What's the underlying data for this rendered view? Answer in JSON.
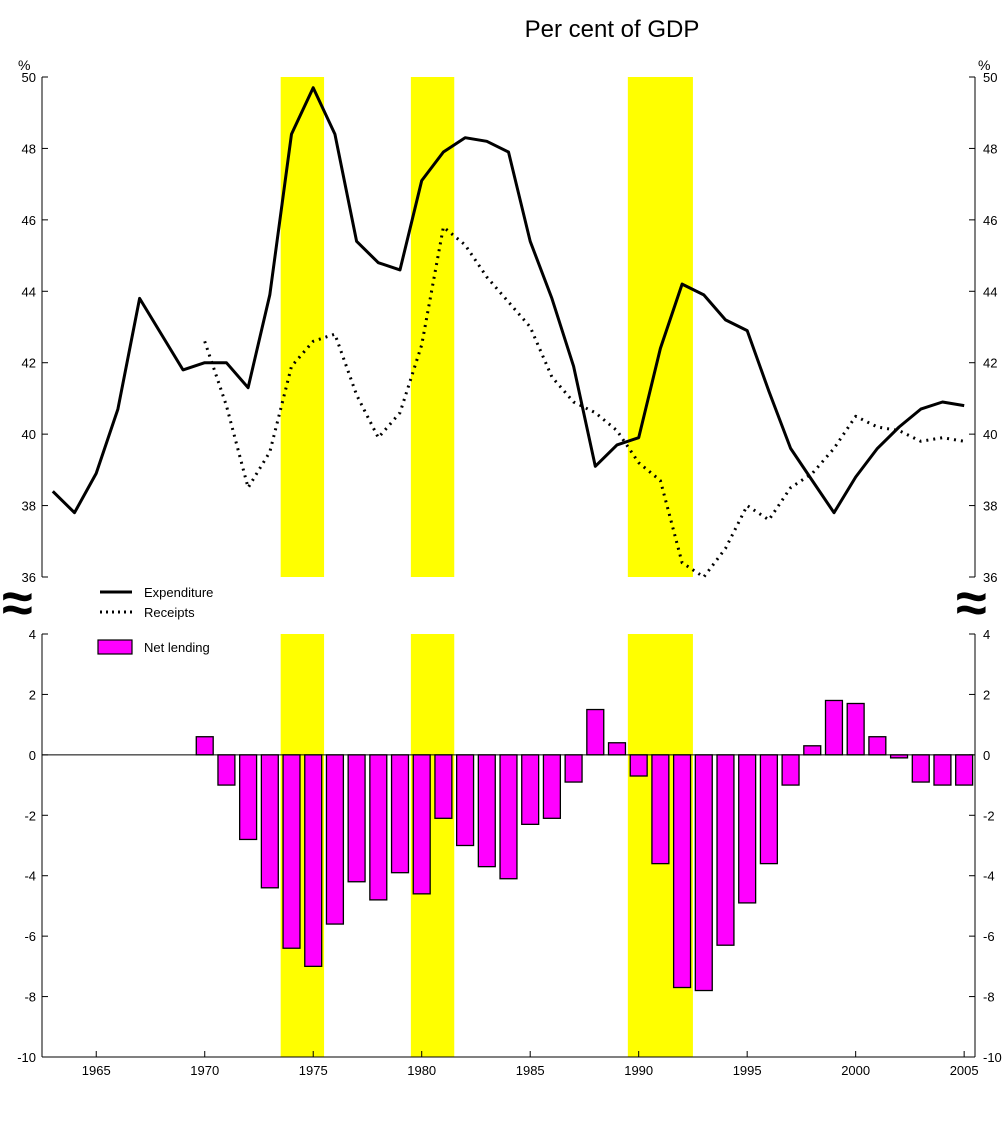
{
  "chart_data": {
    "type": "bar+line",
    "title": "Per cent of GDP",
    "unit_label_left": "%",
    "unit_label_right": "%",
    "break_symbol": "≈",
    "grid": false,
    "legend_position": "upper-left of lower panel",
    "upper_panel": {
      "ylim": [
        36,
        50
      ],
      "yticks": [
        36,
        38,
        40,
        42,
        44,
        46,
        48,
        50
      ],
      "series": [
        {
          "name": "Expenditure",
          "style": "solid",
          "color": "#000000",
          "x": [
            1963,
            1964,
            1965,
            1966,
            1967,
            1968,
            1969,
            1970,
            1971,
            1972,
            1973,
            1974,
            1975,
            1976,
            1977,
            1978,
            1979,
            1980,
            1981,
            1982,
            1983,
            1984,
            1985,
            1986,
            1987,
            1988,
            1989,
            1990,
            1991,
            1992,
            1993,
            1994,
            1995,
            1996,
            1997,
            1998,
            1999,
            2000,
            2001,
            2002,
            2003,
            2004,
            2005
          ],
          "values": [
            38.4,
            37.8,
            38.9,
            40.7,
            43.8,
            42.8,
            41.8,
            42.0,
            42.0,
            41.3,
            43.9,
            48.4,
            49.7,
            48.4,
            45.4,
            44.8,
            44.6,
            47.1,
            47.9,
            48.3,
            48.2,
            47.9,
            45.4,
            43.8,
            41.9,
            39.1,
            39.7,
            39.9,
            42.4,
            44.2,
            43.9,
            43.2,
            42.9,
            41.2,
            39.6,
            38.7,
            37.8,
            38.8,
            39.6,
            40.2,
            40.7,
            40.9,
            40.8
          ]
        },
        {
          "name": "Receipts",
          "style": "dotted",
          "color": "#000000",
          "x": [
            1970,
            1971,
            1972,
            1973,
            1974,
            1975,
            1976,
            1977,
            1978,
            1979,
            1980,
            1981,
            1982,
            1983,
            1984,
            1985,
            1986,
            1987,
            1988,
            1989,
            1990,
            1991,
            1992,
            1993,
            1994,
            1995,
            1996,
            1997,
            1998,
            1999,
            2000,
            2001,
            2002,
            2003,
            2004,
            2005
          ],
          "values": [
            42.6,
            40.8,
            38.5,
            39.5,
            41.9,
            42.6,
            42.8,
            41.1,
            39.9,
            40.6,
            42.5,
            45.8,
            45.3,
            44.4,
            43.7,
            43.0,
            41.6,
            40.9,
            40.6,
            40.1,
            39.2,
            38.7,
            36.4,
            36.0,
            36.8,
            38.0,
            37.6,
            38.5,
            38.9,
            39.6,
            40.5,
            40.2,
            40.1,
            39.8,
            39.9,
            39.8
          ]
        }
      ]
    },
    "lower_panel": {
      "ylim": [
        -10,
        4
      ],
      "yticks": [
        -10,
        -8,
        -6,
        -4,
        -2,
        0,
        2,
        4
      ],
      "series": [
        {
          "name": "Net lending",
          "type": "bar",
          "color": "#ff00ff",
          "x": [
            1970,
            1971,
            1972,
            1973,
            1974,
            1975,
            1976,
            1977,
            1978,
            1979,
            1980,
            1981,
            1982,
            1983,
            1984,
            1985,
            1986,
            1987,
            1988,
            1989,
            1990,
            1991,
            1992,
            1993,
            1994,
            1995,
            1996,
            1997,
            1998,
            1999,
            2000,
            2001,
            2002,
            2003,
            2004,
            2005
          ],
          "values": [
            0.6,
            -1.0,
            -2.8,
            -4.4,
            -6.4,
            -7.0,
            -5.6,
            -4.2,
            -4.8,
            -3.9,
            -4.6,
            -2.1,
            -3.0,
            -3.7,
            -4.1,
            -2.3,
            -2.1,
            -0.9,
            1.5,
            0.4,
            -0.7,
            -3.6,
            -7.7,
            -7.8,
            -6.3,
            -4.9,
            -3.6,
            -1.0,
            0.3,
            1.8,
            1.7,
            0.6,
            -0.1,
            -0.9,
            -1.0,
            -1.0
          ]
        }
      ]
    },
    "x_axis": {
      "xlim": [
        1962.5,
        2005.5
      ],
      "tick_labels": [
        1965,
        1970,
        1975,
        1980,
        1985,
        1990,
        1995,
        2000,
        2005
      ]
    },
    "shaded_periods": {
      "color": "#ffff00",
      "ranges": [
        [
          1973.5,
          1975.5
        ],
        [
          1979.5,
          1981.5
        ],
        [
          1989.5,
          1992.5
        ]
      ]
    }
  }
}
